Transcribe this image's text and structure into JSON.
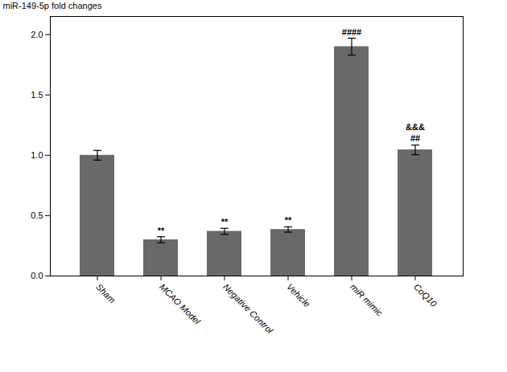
{
  "chart_data": {
    "type": "bar",
    "categories": [
      "Sham",
      "MCAO Model",
      "Negative Control",
      "Vehicle",
      "miR mimic",
      "CoQ10"
    ],
    "values": [
      1.0,
      0.3,
      0.37,
      0.385,
      1.9,
      1.045
    ],
    "errors": [
      0.04,
      0.025,
      0.025,
      0.022,
      0.07,
      0.04
    ],
    "color": "#696969",
    "ylabel": "miR-149-5p fold changes",
    "ylim": [
      0.0,
      2.15
    ],
    "yticks": [
      {
        "value": 0,
        "label": "0.0"
      },
      0.5,
      {
        "value": 1,
        "label": "1.0"
      },
      1.5,
      {
        "value": 2,
        "label": "2.0"
      }
    ],
    "annotations": [
      {
        "category": "MCAO Model",
        "text": "**"
      },
      {
        "category": "Negative Control",
        "text": "**"
      },
      {
        "category": "Vehicle",
        "text": "**"
      },
      {
        "category": "miR mimic",
        "text": "####"
      },
      {
        "category": "CoQ10",
        "text": "&&&"
      },
      {
        "category": "CoQ10",
        "text": "##"
      }
    ]
  }
}
